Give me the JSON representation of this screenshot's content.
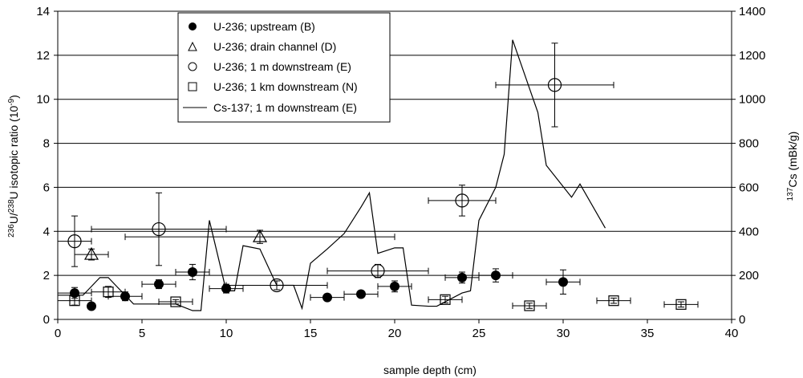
{
  "chart_data": {
    "type": "scatter",
    "xlabel": "sample depth (cm)",
    "ylabel_prefix_sup1": "236",
    "ylabel_mid1": "U/",
    "ylabel_prefix_sup2": "238",
    "ylabel_mid2": "U isotopic ratio (10",
    "ylabel_exp": "-9",
    "ylabel_end": ")",
    "y2label_sup": "137",
    "y2label_rest": "Cs (mBk/g)",
    "xlim": [
      0,
      40
    ],
    "ylim": [
      0,
      14
    ],
    "y2lim": [
      0,
      1400
    ],
    "xticks": [
      "0",
      "5",
      "10",
      "15",
      "20",
      "25",
      "30",
      "35",
      "40"
    ],
    "yticks": [
      "0",
      "2",
      "4",
      "6",
      "8",
      "10",
      "12",
      "14"
    ],
    "y2ticks": [
      "0",
      "200",
      "400",
      "600",
      "800",
      "1000",
      "1200",
      "1400"
    ],
    "grid": "horizontal",
    "legend_position": "top-center",
    "series": [
      {
        "name": "U-236; upstream (B)",
        "marker": "filled-circle",
        "points": [
          {
            "x": 1,
            "y": 1.2,
            "xerr": 1,
            "yerr": 0.25
          },
          {
            "x": 2,
            "y": 0.6,
            "xerr": 0,
            "yerr": 0.1
          },
          {
            "x": 4,
            "y": 1.05,
            "xerr": 1,
            "yerr": 0.2
          },
          {
            "x": 6,
            "y": 1.6,
            "xerr": 1,
            "yerr": 0.2
          },
          {
            "x": 8,
            "y": 2.15,
            "xerr": 1,
            "yerr": 0.35
          },
          {
            "x": 10,
            "y": 1.4,
            "xerr": 1,
            "yerr": 0.2
          },
          {
            "x": 16,
            "y": 1.0,
            "xerr": 1,
            "yerr": 0.15
          },
          {
            "x": 18,
            "y": 1.15,
            "xerr": 1,
            "yerr": 0.15
          },
          {
            "x": 20,
            "y": 1.5,
            "xerr": 1,
            "yerr": 0.25
          },
          {
            "x": 24,
            "y": 1.9,
            "xerr": 1,
            "yerr": 0.25
          },
          {
            "x": 26,
            "y": 2.0,
            "xerr": 1,
            "yerr": 0.3
          },
          {
            "x": 30,
            "y": 1.7,
            "xerr": 1,
            "yerr": 0.55
          }
        ]
      },
      {
        "name": "U-236; drain channel (D)",
        "marker": "open-triangle",
        "points": [
          {
            "x": 2,
            "y": 2.95,
            "xerr": 1,
            "yerr": 0.25
          },
          {
            "x": 12,
            "y": 3.75,
            "xerr": 8,
            "yerr": 0.3
          }
        ]
      },
      {
        "name": "U-236; 1 m downstream (E)",
        "marker": "open-circle",
        "points": [
          {
            "x": 1,
            "y": 3.55,
            "xerr": 1,
            "yerr": 1.15
          },
          {
            "x": 6,
            "y": 4.1,
            "xerr": 4,
            "yerr": 1.65
          },
          {
            "x": 13,
            "y": 1.55,
            "xerr": 3,
            "yerr": 0.2
          },
          {
            "x": 19,
            "y": 2.2,
            "xerr": 3,
            "yerr": 0.3
          },
          {
            "x": 24,
            "y": 5.4,
            "xerr": 2,
            "yerr": 0.7
          },
          {
            "x": 29.5,
            "y": 10.65,
            "xerr": 3.5,
            "yerr": 1.9
          }
        ]
      },
      {
        "name": "U-236; 1 km downstream (N)",
        "marker": "open-square",
        "points": [
          {
            "x": 1,
            "y": 0.85,
            "xerr": 1,
            "yerr": 0.2
          },
          {
            "x": 3,
            "y": 1.25,
            "xerr": 1,
            "yerr": 0.25
          },
          {
            "x": 7,
            "y": 0.8,
            "xerr": 1,
            "yerr": 0.1
          },
          {
            "x": 23,
            "y": 0.9,
            "xerr": 1,
            "yerr": 0.15
          },
          {
            "x": 28,
            "y": 0.62,
            "xerr": 1,
            "yerr": 0.12
          },
          {
            "x": 33,
            "y": 0.85,
            "xerr": 1,
            "yerr": 0.12
          },
          {
            "x": 37,
            "y": 0.68,
            "xerr": 1,
            "yerr": 0.12
          }
        ]
      },
      {
        "name": "Cs-137; 1 m downstream (E)",
        "marker": "line",
        "axis": "right",
        "x": [
          0,
          1,
          1.5,
          2,
          2.5,
          3,
          3.5,
          4,
          4.5,
          5,
          6,
          7,
          8,
          8.5,
          9,
          10,
          10.5,
          11,
          12,
          13,
          14,
          14.5,
          15,
          16,
          17,
          18,
          18.5,
          19,
          20,
          20.5,
          21,
          22,
          22.5,
          24,
          24.5,
          25,
          26,
          26.5,
          27,
          28.5,
          29,
          30.5,
          31,
          32.5
        ],
        "values": [
          110,
          110,
          110,
          150,
          190,
          190,
          150,
          110,
          70,
          70,
          70,
          70,
          40,
          40,
          450,
          130,
          130,
          335,
          320,
          155,
          155,
          50,
          255,
          320,
          390,
          510,
          575,
          300,
          325,
          325,
          65,
          60,
          60,
          120,
          130,
          450,
          600,
          750,
          1270,
          940,
          700,
          555,
          615,
          415
        ]
      }
    ],
    "legend": [
      "U-236; upstream (B)",
      "U-236; drain channel (D)",
      "U-236; 1 m downstream (E)",
      "U-236; 1 km downstream (N)",
      "Cs-137; 1 m downstream (E)"
    ]
  }
}
